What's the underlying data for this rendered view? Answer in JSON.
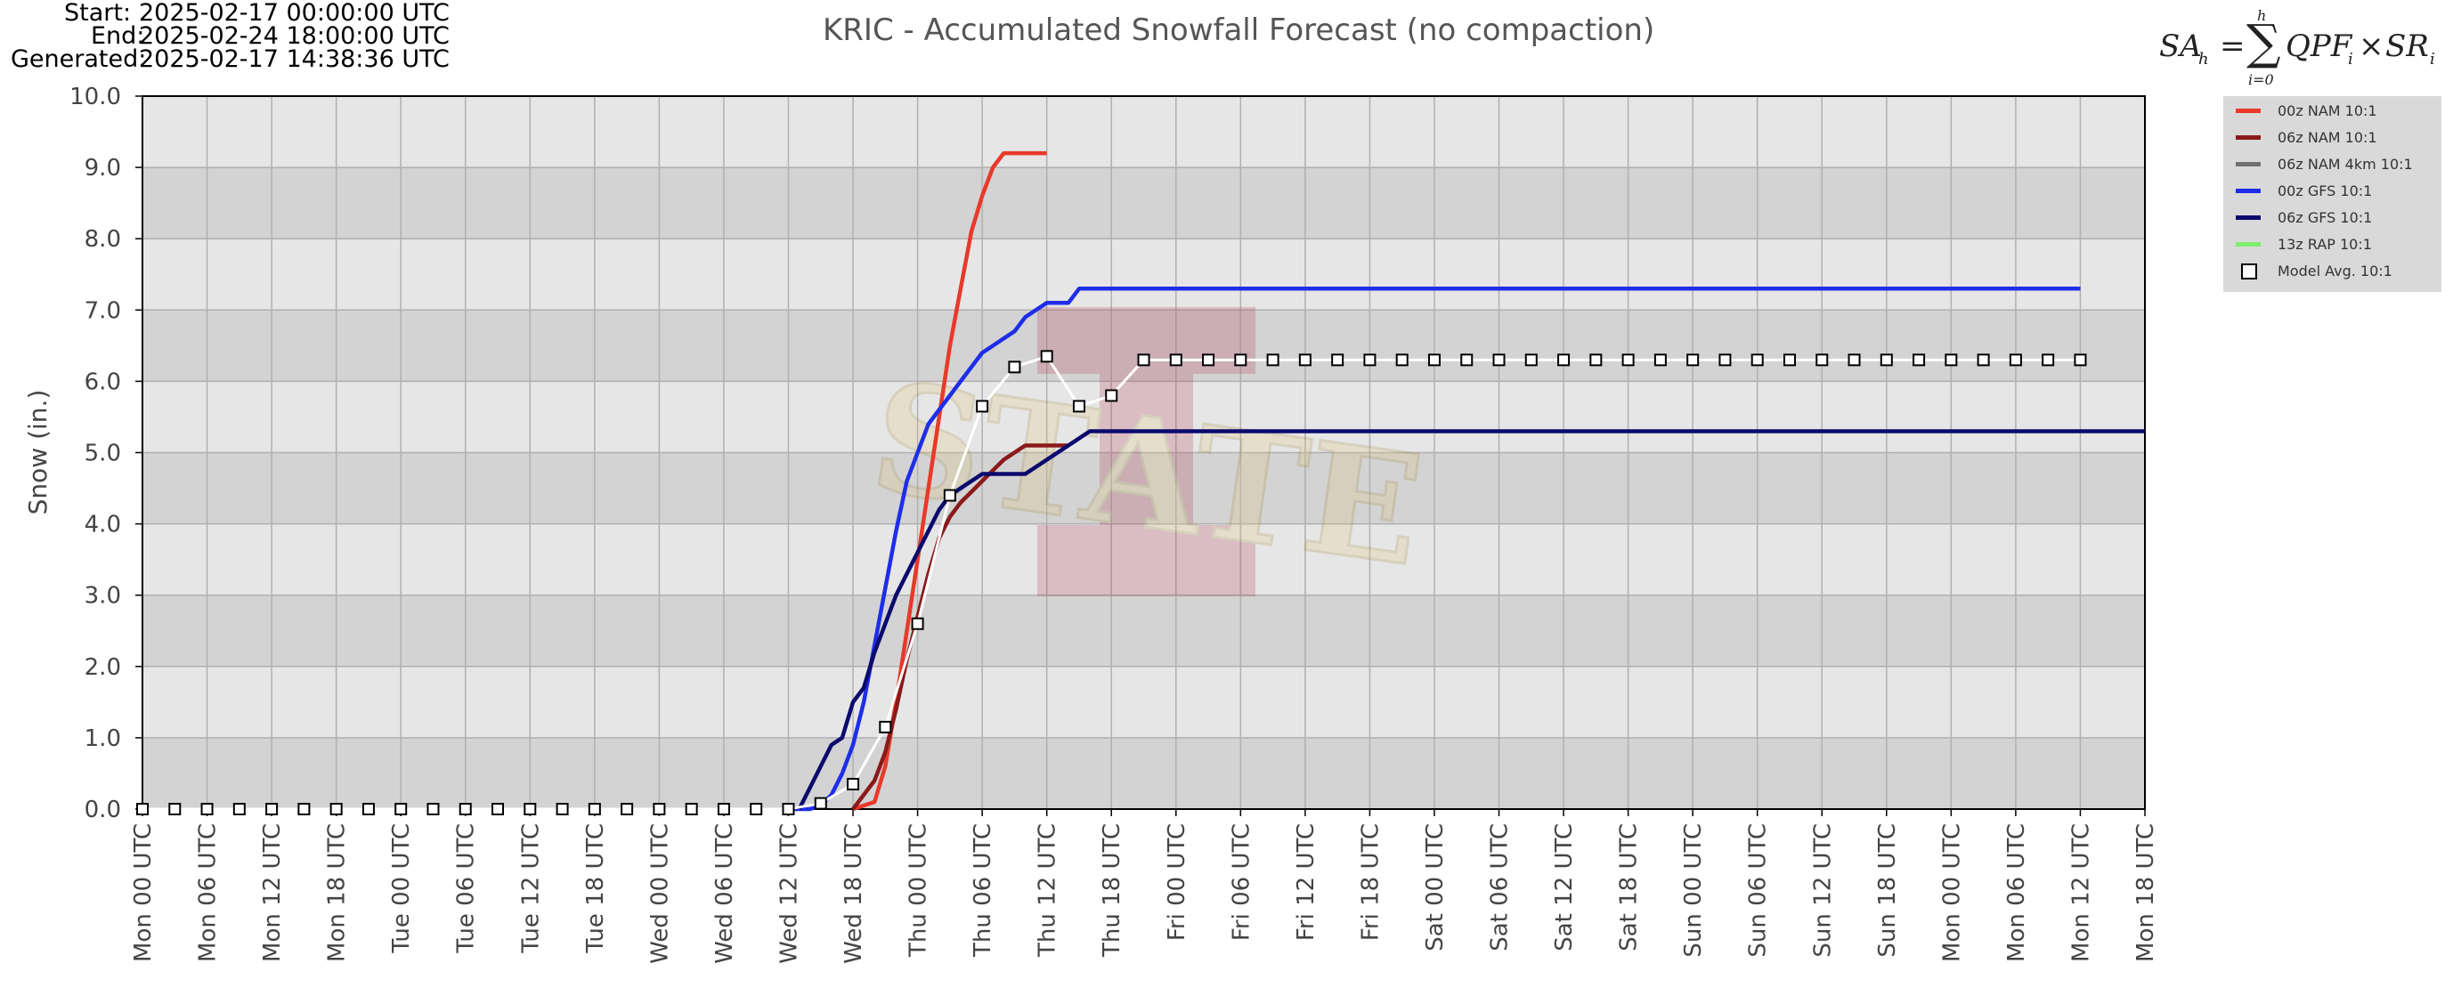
{
  "header": {
    "start_label": "Start:",
    "start_value": "2025-02-17 00:00:00 UTC",
    "end_label": "End:",
    "end_value": "2025-02-24 18:00:00 UTC",
    "generated_label": "Generated:",
    "generated_value": "2025-02-17 14:38:36 UTC"
  },
  "formula": {
    "lhs": "SA",
    "lhs_sub": "h",
    "sum_top": "h",
    "sum_bottom": "i=0",
    "rhs": "QPF",
    "rhs_sub": "i",
    "times": "×",
    "rhs2": "SR",
    "rhs2_sub": "i"
  },
  "watermark": {
    "logo_text": "STATE",
    "logo_letter": "I"
  },
  "colors": {
    "plot_band_dark": "#d3d3d3",
    "plot_band_light": "#e6e6e6",
    "grid": "#b0b0b0"
  },
  "chart_data": {
    "type": "line",
    "title": "KRIC - Accumulated Snowfall Forecast (no compaction)",
    "xlabel": "",
    "ylabel": "Snow (in.)",
    "ylim": [
      0,
      10
    ],
    "xlim": [
      "Mon 00 UTC",
      "Mon 18 UTC (next week)"
    ],
    "y_ticks": [
      "0.0",
      "1.0",
      "2.0",
      "3.0",
      "4.0",
      "5.0",
      "6.0",
      "7.0",
      "8.0",
      "9.0",
      "10.0"
    ],
    "x_ticks": [
      "Mon 00 UTC",
      "Mon 06 UTC",
      "Mon 12 UTC",
      "Mon 18 UTC",
      "Tue 00 UTC",
      "Tue 06 UTC",
      "Tue 12 UTC",
      "Tue 18 UTC",
      "Wed 00 UTC",
      "Wed 06 UTC",
      "Wed 12 UTC",
      "Wed 18 UTC",
      "Thu 00 UTC",
      "Thu 06 UTC",
      "Thu 12 UTC",
      "Thu 18 UTC",
      "Fri 00 UTC",
      "Fri 06 UTC",
      "Fri 12 UTC",
      "Fri 18 UTC",
      "Sat 00 UTC",
      "Sat 06 UTC",
      "Sat 12 UTC",
      "Sat 18 UTC",
      "Sun 00 UTC",
      "Sun 06 UTC",
      "Sun 12 UTC",
      "Sun 18 UTC",
      "Mon 00 UTC",
      "Mon 06 UTC",
      "Mon 12 UTC",
      "Mon 18 UTC"
    ],
    "x_units": "hours from Mon 00 UTC",
    "grid": true,
    "legend_position": "right, outside plot",
    "series": [
      {
        "name": "00z NAM 10:1",
        "color": "#e8392a",
        "x": [
          66,
          68,
          69,
          70,
          71,
          72,
          73,
          74,
          75,
          76,
          77,
          78,
          79,
          80,
          81,
          82,
          84
        ],
        "y": [
          0.0,
          0.1,
          0.6,
          1.5,
          2.5,
          3.5,
          4.5,
          5.5,
          6.5,
          7.3,
          8.1,
          8.6,
          9.0,
          9.2,
          9.2,
          9.2,
          9.2
        ]
      },
      {
        "name": "06z NAM 10:1",
        "color": "#8b1a1a",
        "x": [
          66,
          67,
          68,
          69,
          70,
          71,
          72,
          73,
          74,
          75,
          76,
          77,
          78,
          80,
          82,
          84,
          86
        ],
        "y": [
          0.0,
          0.2,
          0.4,
          0.8,
          1.4,
          2.1,
          2.7,
          3.3,
          3.8,
          4.1,
          4.3,
          4.45,
          4.6,
          4.9,
          5.1,
          5.1,
          5.1
        ]
      },
      {
        "name": "06z NAM 4km 10:1",
        "color": "#707070",
        "x": [],
        "y": []
      },
      {
        "name": "00z GFS 10:1",
        "color": "#1e2ee8",
        "x": [
          60,
          62,
          63,
          64,
          65,
          66,
          67,
          68,
          69,
          70,
          71,
          72,
          73,
          74,
          75,
          76,
          77,
          78,
          79,
          80,
          81,
          82,
          84,
          86,
          87,
          90,
          96,
          102,
          108,
          114,
          120,
          126,
          132,
          138,
          144,
          150,
          156,
          162,
          168,
          174,
          180
        ],
        "y": [
          0.0,
          0.0,
          0.05,
          0.2,
          0.5,
          0.9,
          1.5,
          2.3,
          3.1,
          3.9,
          4.6,
          5.0,
          5.4,
          5.6,
          5.8,
          6.0,
          6.2,
          6.4,
          6.5,
          6.6,
          6.7,
          6.9,
          7.1,
          7.1,
          7.3,
          7.3,
          7.3,
          7.3,
          7.3,
          7.3,
          7.3,
          7.3,
          7.3,
          7.3,
          7.3,
          7.3,
          7.3,
          7.3,
          7.3,
          7.3,
          7.3
        ]
      },
      {
        "name": "06z GFS 10:1",
        "color": "#0a0a6e",
        "x": [
          61,
          62,
          63,
          64,
          65,
          66,
          67,
          68,
          69,
          70,
          71,
          72,
          73,
          74,
          75,
          76,
          78,
          80,
          82,
          84,
          86,
          88,
          90,
          96,
          102,
          108,
          114,
          120,
          126,
          132,
          138,
          144,
          150,
          156,
          162,
          168,
          174,
          180,
          186
        ],
        "y": [
          0.0,
          0.3,
          0.6,
          0.9,
          1.0,
          1.5,
          1.7,
          2.2,
          2.6,
          3.0,
          3.3,
          3.6,
          3.9,
          4.2,
          4.4,
          4.5,
          4.7,
          4.7,
          4.7,
          4.9,
          5.1,
          5.3,
          5.3,
          5.3,
          5.3,
          5.3,
          5.3,
          5.3,
          5.3,
          5.3,
          5.3,
          5.3,
          5.3,
          5.3,
          5.3,
          5.3,
          5.3,
          5.3,
          5.3
        ]
      },
      {
        "name": "13z RAP 10:1",
        "color": "#7cf06a",
        "x": [],
        "y": []
      },
      {
        "name": "Model Avg. 10:1",
        "color": "#ffffff",
        "marker": "square",
        "x": [
          0,
          3,
          6,
          9,
          12,
          15,
          18,
          21,
          24,
          27,
          30,
          33,
          36,
          39,
          42,
          45,
          48,
          51,
          54,
          57,
          60,
          63,
          66,
          69,
          72,
          75,
          78,
          81,
          84,
          87,
          90,
          93,
          96,
          99,
          102,
          105,
          108,
          111,
          114,
          117,
          120,
          123,
          126,
          129,
          132,
          135,
          138,
          141,
          144,
          147,
          150,
          153,
          156,
          159,
          162,
          165,
          168,
          171,
          174,
          177,
          180
        ],
        "y": [
          0,
          0,
          0,
          0,
          0,
          0,
          0,
          0,
          0,
          0,
          0,
          0,
          0,
          0,
          0,
          0,
          0,
          0,
          0,
          0,
          0,
          0.08,
          0.35,
          1.15,
          2.6,
          4.4,
          5.65,
          6.2,
          6.35,
          5.65,
          5.8,
          6.3,
          6.3,
          6.3,
          6.3,
          6.3,
          6.3,
          6.3,
          6.3,
          6.3,
          6.3,
          6.3,
          6.3,
          6.3,
          6.3,
          6.3,
          6.3,
          6.3,
          6.3,
          6.3,
          6.3,
          6.3,
          6.3,
          6.3,
          6.3,
          6.3,
          6.3,
          6.3,
          6.3,
          6.3,
          6.3
        ]
      }
    ]
  }
}
